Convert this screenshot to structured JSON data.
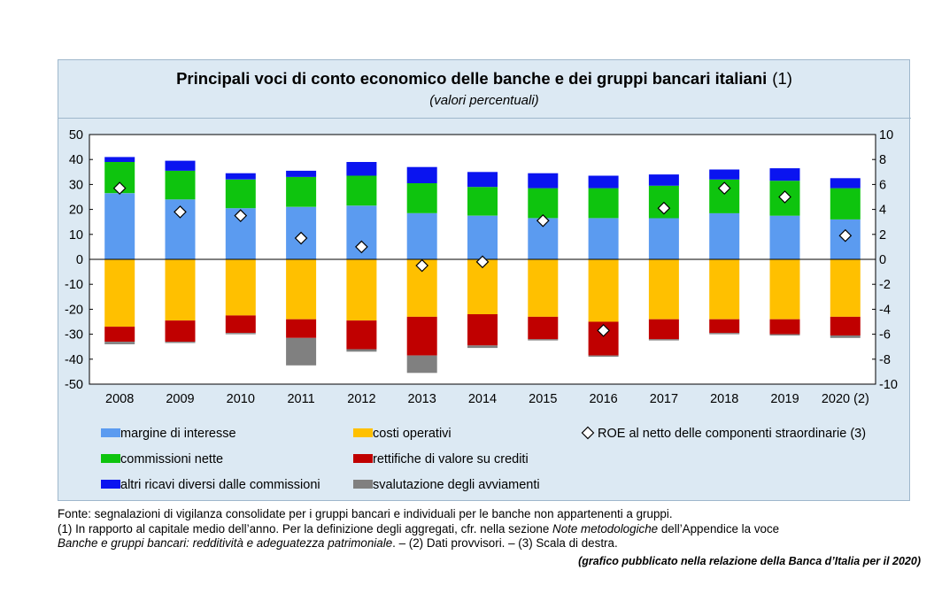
{
  "colors": {
    "margine": "#5b9bf0",
    "commissioni": "#0ec40e",
    "altri": "#0a14f0",
    "costi": "#ffc000",
    "rettifiche": "#c00000",
    "svalutazione": "#808080",
    "background": "#dce9f3"
  },
  "chart_data": {
    "type": "bar",
    "stacked": true,
    "title": "Principali voci di conto economico delle banche e dei gruppi bancari italiani",
    "title_note": "(1)",
    "subtitle": "(valori percentuali)",
    "categories": [
      "2008",
      "2009",
      "2010",
      "2011",
      "2012",
      "2013",
      "2014",
      "2015",
      "2016",
      "2017",
      "2018",
      "2019",
      "2020 (2)"
    ],
    "ylim_left": [
      -50,
      50
    ],
    "yticks_left": [
      50,
      40,
      30,
      20,
      10,
      0,
      -10,
      -20,
      -30,
      -40,
      -50
    ],
    "ylim_right": [
      -10,
      10
    ],
    "yticks_right": [
      10,
      8,
      6,
      4,
      2,
      0,
      -2,
      -4,
      -6,
      -8,
      -10
    ],
    "grid": false,
    "legend_position": "bottom",
    "series": [
      {
        "name": "margine di interesse",
        "color_key": "margine",
        "axis": "left",
        "values": [
          26.5,
          24,
          20.5,
          21,
          21.5,
          18.5,
          17.5,
          16.5,
          16.5,
          16.5,
          18.5,
          17.5,
          16
        ]
      },
      {
        "name": "commissioni nette",
        "color_key": "commissioni",
        "axis": "left",
        "values": [
          12.5,
          11.5,
          11.5,
          12,
          12,
          12,
          11.5,
          12,
          12,
          13,
          13.5,
          14,
          12.5
        ]
      },
      {
        "name": "altri ricavi diversi dalle commissioni",
        "color_key": "altri",
        "axis": "left",
        "values": [
          2,
          4,
          2.5,
          2.5,
          5.5,
          6.5,
          6,
          6,
          5,
          4.5,
          4,
          5,
          4
        ]
      },
      {
        "name": "costi operativi",
        "color_key": "costi",
        "axis": "left",
        "values": [
          -27,
          -24.5,
          -22.5,
          -24,
          -24.5,
          -23,
          -22,
          -23,
          -25,
          -24,
          -24,
          -24,
          -23
        ]
      },
      {
        "name": "rettifiche di valore su crediti",
        "color_key": "rettifiche",
        "axis": "left",
        "values": [
          -6,
          -8.5,
          -7,
          -7.5,
          -11.5,
          -15.5,
          -12.5,
          -9,
          -13.5,
          -8,
          -5.5,
          -6,
          -7.5
        ]
      },
      {
        "name": "svalutazione degli avviamenti",
        "color_key": "svalutazione",
        "axis": "left",
        "values": [
          -1,
          -0.5,
          -0.5,
          -11,
          -1,
          -7,
          -1,
          -0.5,
          -0.5,
          -0.5,
          -0.5,
          -0.5,
          -1
        ]
      },
      {
        "name": "ROE al netto delle componenti straordinarie (3)",
        "type": "scatter",
        "marker": "diamond",
        "axis": "right",
        "values": [
          5.7,
          3.8,
          3.5,
          1.7,
          1.0,
          -0.5,
          -0.2,
          3.1,
          -5.7,
          4.1,
          5.7,
          5.0,
          1.9
        ]
      }
    ]
  },
  "notes": {
    "source": "Fonte: segnalazioni di vigilanza consolidate per i gruppi bancari e individuali per le banche non appartenenti a gruppi.",
    "note1_a": "(1) In rapporto al capitale medio dell’anno. Per la definizione degli aggregati, cfr. nella sezione ",
    "note1_italic1": "Note metodologiche",
    "note1_b": " dell’Appendice la voce ",
    "note1_italic2": "Banche e gruppi bancari: redditività e adeguatezza patrimoniale",
    "note1_c": ". – (2) Dati provvisori. – (3) Scala di destra.",
    "credit": "(grafico pubblicato nella relazione della Banca d’Italia per il 2020)"
  }
}
